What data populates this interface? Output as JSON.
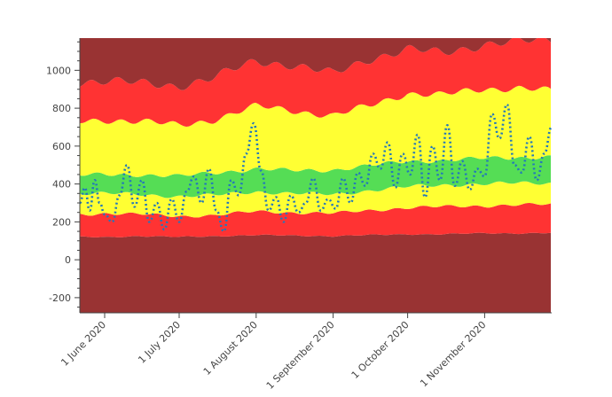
{
  "chart_data": {
    "type": "area",
    "title": "",
    "xlabel": "",
    "ylabel": "",
    "x_range": [
      "2020-05-22",
      "2020-11-28"
    ],
    "ylim": [
      -280,
      1170
    ],
    "grid": false,
    "legend": "none",
    "y_ticks": [
      -200,
      0,
      200,
      400,
      600,
      800,
      1000
    ],
    "y_tick_labels": [
      "-200",
      "0",
      "200",
      "400",
      "600",
      "800",
      "1000"
    ],
    "x_ticks": [
      "2020-06-01",
      "2020-07-01",
      "2020-08-01",
      "2020-09-01",
      "2020-10-01",
      "2020-11-01"
    ],
    "x_tick_labels": [
      "1 June 2020",
      "1 July 2020",
      "1 August 2020",
      "1 September 2020",
      "1 October 2020",
      "1 November 2020"
    ],
    "band_colors": {
      "outer": "#993333",
      "red": "#ff3333",
      "yellow": "#ffff33",
      "green": "#55dd55",
      "line": "#2277bb"
    },
    "bands": [
      {
        "name": "outer-bottom",
        "color": "outer",
        "from": "ymin",
        "to": "red_low"
      },
      {
        "name": "red-low",
        "color": "red",
        "from": "red_low",
        "to": "yellow_low"
      },
      {
        "name": "yellow-low",
        "color": "yellow",
        "from": "yellow_low",
        "to": "green_low"
      },
      {
        "name": "green",
        "color": "green",
        "from": "green_low",
        "to": "green_high"
      },
      {
        "name": "yellow-high",
        "color": "yellow",
        "from": "green_high",
        "to": "yellow_high"
      },
      {
        "name": "red-high",
        "color": "red",
        "from": "yellow_high",
        "to": "red_high"
      },
      {
        "name": "outer-top",
        "color": "outer",
        "from": "red_high",
        "to": "ymax"
      }
    ],
    "band_knots": {
      "dates": [
        "2020-05-22",
        "2020-06-01",
        "2020-06-15",
        "2020-07-01",
        "2020-07-15",
        "2020-08-01",
        "2020-08-15",
        "2020-09-01",
        "2020-09-15",
        "2020-10-01",
        "2020-10-15",
        "2020-11-01",
        "2020-11-15",
        "2020-11-28"
      ],
      "red_low": [
        120,
        120,
        125,
        120,
        125,
        130,
        128,
        125,
        130,
        135,
        135,
        140,
        140,
        142
      ],
      "yellow_low": [
        240,
        245,
        240,
        230,
        235,
        255,
        250,
        245,
        260,
        275,
        280,
        285,
        290,
        292
      ],
      "green_low": [
        350,
        350,
        345,
        335,
        340,
        360,
        350,
        345,
        365,
        385,
        395,
        400,
        405,
        405
      ],
      "green_high": [
        445,
        450,
        450,
        440,
        460,
        480,
        470,
        475,
        495,
        520,
        525,
        535,
        540,
        545
      ],
      "yellow_high": [
        730,
        740,
        730,
        710,
        740,
        810,
        790,
        760,
        810,
        880,
        870,
        900,
        910,
        890
      ],
      "red_high": [
        940,
        945,
        930,
        920,
        960,
        1050,
        1030,
        980,
        1060,
        1110,
        1090,
        1140,
        1150,
        1160
      ]
    },
    "series": [
      {
        "name": "observed",
        "style": "dotted",
        "dates": [
          "2020-05-22",
          "2020-05-24",
          "2020-05-26",
          "2020-05-28",
          "2020-05-30",
          "2020-06-01",
          "2020-06-04",
          "2020-06-07",
          "2020-06-10",
          "2020-06-13",
          "2020-06-16",
          "2020-06-19",
          "2020-06-22",
          "2020-06-25",
          "2020-06-28",
          "2020-07-01",
          "2020-07-04",
          "2020-07-07",
          "2020-07-10",
          "2020-07-13",
          "2020-07-16",
          "2020-07-19",
          "2020-07-22",
          "2020-07-25",
          "2020-07-28",
          "2020-07-31",
          "2020-08-03",
          "2020-08-06",
          "2020-08-09",
          "2020-08-12",
          "2020-08-15",
          "2020-08-18",
          "2020-08-21",
          "2020-08-24",
          "2020-08-27",
          "2020-08-30",
          "2020-09-02",
          "2020-09-05",
          "2020-09-08",
          "2020-09-11",
          "2020-09-14",
          "2020-09-17",
          "2020-09-20",
          "2020-09-23",
          "2020-09-26",
          "2020-09-29",
          "2020-10-02",
          "2020-10-05",
          "2020-10-08",
          "2020-10-11",
          "2020-10-14",
          "2020-10-17",
          "2020-10-20",
          "2020-10-23",
          "2020-10-26",
          "2020-10-29",
          "2020-11-01",
          "2020-11-04",
          "2020-11-07",
          "2020-11-10",
          "2020-11-13",
          "2020-11-16",
          "2020-11-19",
          "2020-11-22",
          "2020-11-25",
          "2020-11-28"
        ],
        "values": [
          300,
          380,
          260,
          420,
          300,
          240,
          200,
          340,
          500,
          280,
          420,
          200,
          300,
          160,
          320,
          200,
          360,
          440,
          300,
          480,
          260,
          150,
          420,
          340,
          560,
          720,
          470,
          260,
          330,
          200,
          340,
          250,
          300,
          430,
          260,
          320,
          270,
          430,
          300,
          460,
          390,
          560,
          480,
          620,
          380,
          560,
          450,
          660,
          330,
          600,
          420,
          710,
          390,
          520,
          370,
          480,
          440,
          770,
          640,
          820,
          500,
          460,
          650,
          420,
          560,
          700
        ]
      }
    ]
  }
}
